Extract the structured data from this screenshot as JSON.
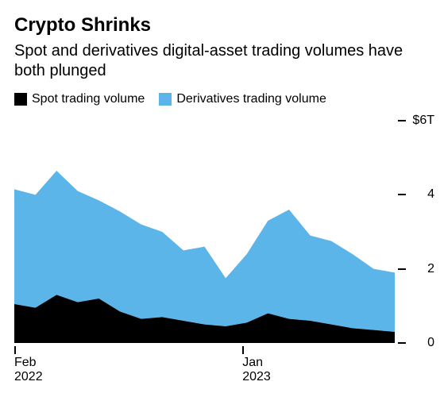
{
  "title": "Crypto Shrinks",
  "subtitle": "Spot and derivatives digital-asset trading volumes have both plunged",
  "legend": {
    "spot": {
      "label": "Spot trading volume",
      "color": "#000000"
    },
    "derivatives": {
      "label": "Derivatives trading volume",
      "color": "#5cb5e8"
    }
  },
  "chart": {
    "type": "stacked-area",
    "background_color": "#ffffff",
    "axis_color": "#000000",
    "font_family": "Helvetica, Arial, sans-serif",
    "title_fontsize": 24,
    "subtitle_fontsize": 20,
    "label_fontsize": 16,
    "ylim": [
      0,
      6
    ],
    "y_ticks": [
      {
        "value": 6,
        "label": "$6T"
      },
      {
        "value": 4,
        "label": "4"
      },
      {
        "value": 2,
        "label": "2"
      },
      {
        "value": 0,
        "label": "0"
      }
    ],
    "x_ticks": [
      {
        "index": 0,
        "month": "Feb",
        "year": "2022"
      },
      {
        "index": 11,
        "month": "Jan",
        "year": "2023"
      }
    ],
    "series": {
      "spot": [
        1.05,
        0.95,
        1.3,
        1.1,
        1.2,
        0.85,
        0.65,
        0.7,
        0.6,
        0.5,
        0.45,
        0.55,
        0.8,
        0.65,
        0.6,
        0.5,
        0.4,
        0.35,
        0.3
      ],
      "derivatives": [
        3.1,
        3.05,
        3.35,
        3.0,
        2.65,
        2.7,
        2.55,
        2.3,
        1.9,
        2.1,
        1.3,
        1.85,
        2.5,
        2.95,
        2.3,
        2.25,
        2.0,
        1.65,
        1.6
      ]
    }
  }
}
